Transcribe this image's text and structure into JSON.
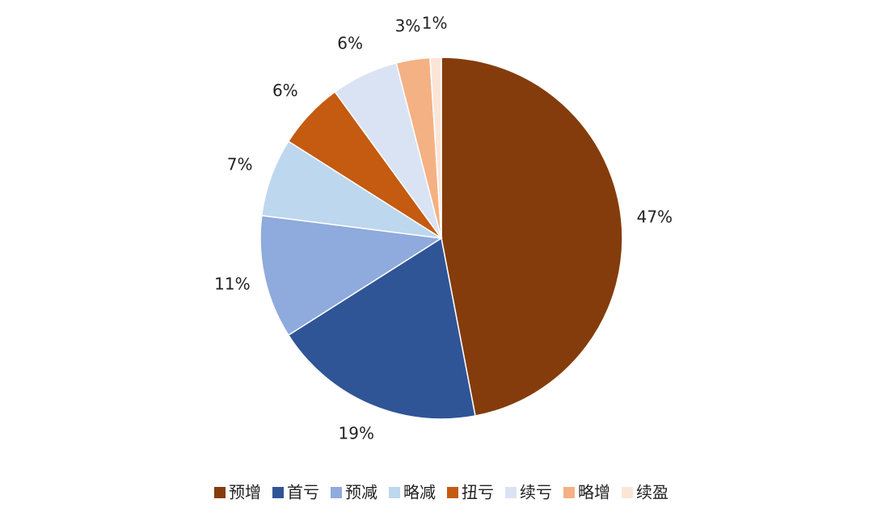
{
  "chart_data": {
    "type": "pie",
    "categories": [
      "预增",
      "首亏",
      "预减",
      "略减",
      "扭亏",
      "续亏",
      "略增",
      "续盈"
    ],
    "values": [
      47,
      19,
      11,
      7,
      6,
      6,
      3,
      1
    ],
    "value_labels": [
      "47%",
      "19%",
      "11%",
      "7%",
      "6%",
      "6%",
      "3%",
      "1%"
    ],
    "colors": [
      "#843c0c",
      "#2f5597",
      "#8faadc",
      "#bdd7ee",
      "#c55a11",
      "#dae3f3",
      "#f4b183",
      "#fbe5d6"
    ],
    "legend": "bottom"
  }
}
